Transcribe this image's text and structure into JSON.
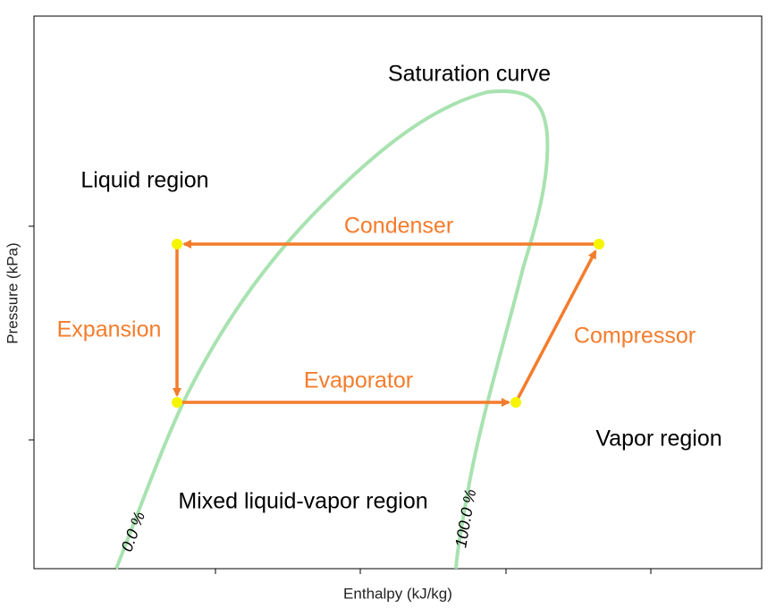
{
  "diagram": {
    "curve_label": "Saturation curve",
    "regions": {
      "liquid": "Liquid region",
      "vapor": "Vapor region",
      "mixed": "Mixed liquid-vapor region"
    },
    "processes": {
      "condenser": "Condenser",
      "expansion": "Expansion",
      "evaporator": "Evaporator",
      "compressor": "Compressor"
    },
    "quality_labels": {
      "liquid_line": "0.0 %",
      "vapor_line": "100.0 %"
    },
    "x_axis_label": "Enthalpy (kJ/kg)",
    "y_axis_label": "Pressure (kPa)"
  }
}
